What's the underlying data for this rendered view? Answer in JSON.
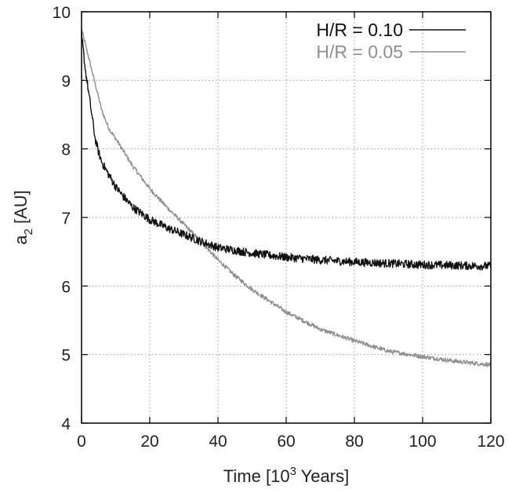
{
  "chart_data": {
    "type": "line",
    "title": "",
    "xlabel_main": "Time  [10",
    "xlabel_sup": "3",
    "xlabel_tail": " Years]",
    "ylabel_main": "a",
    "ylabel_sub": "2",
    "ylabel_tail": "  [AU]",
    "xlim": [
      0,
      120
    ],
    "ylim": [
      4,
      10
    ],
    "xticks": [
      "0",
      "20",
      "40",
      "60",
      "80",
      "100",
      "120"
    ],
    "yticks": [
      "4",
      "5",
      "6",
      "7",
      "8",
      "9",
      "10"
    ],
    "grid": true,
    "legend_position": "top-right",
    "series": [
      {
        "name": "H/R = 0.10",
        "color": "#111111",
        "noise": 0.06,
        "x": [
          0,
          0.5,
          1,
          2,
          3,
          4,
          5,
          6,
          8,
          10,
          12,
          15,
          20,
          25,
          30,
          35,
          40,
          45,
          50,
          60,
          70,
          80,
          90,
          100,
          110,
          120
        ],
        "y": [
          9.65,
          9.45,
          9.2,
          8.85,
          8.5,
          8.15,
          7.95,
          7.8,
          7.62,
          7.45,
          7.32,
          7.15,
          6.97,
          6.85,
          6.75,
          6.65,
          6.56,
          6.52,
          6.48,
          6.42,
          6.38,
          6.35,
          6.33,
          6.31,
          6.3,
          6.29
        ]
      },
      {
        "name": "H/R = 0.05",
        "color": "#8c9094",
        "noise": 0.03,
        "x": [
          0,
          0.5,
          1,
          2,
          4,
          6,
          8,
          10,
          15,
          20,
          25,
          30,
          35,
          40,
          45,
          50,
          60,
          70,
          80,
          90,
          100,
          110,
          120
        ],
        "y": [
          9.75,
          9.65,
          9.55,
          9.35,
          8.95,
          8.55,
          8.3,
          8.15,
          7.75,
          7.42,
          7.15,
          6.9,
          6.65,
          6.38,
          6.15,
          5.95,
          5.62,
          5.37,
          5.2,
          5.05,
          4.97,
          4.9,
          4.85
        ]
      }
    ]
  }
}
